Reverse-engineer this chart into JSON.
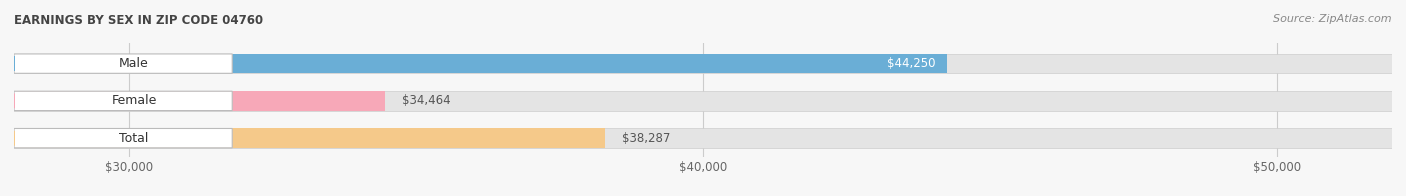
{
  "title": "EARNINGS BY SEX IN ZIP CODE 04760",
  "source": "Source: ZipAtlas.com",
  "categories": [
    "Male",
    "Female",
    "Total"
  ],
  "values": [
    44250,
    34464,
    38287
  ],
  "bar_colors": [
    "#6aaed6",
    "#f7a8b8",
    "#f5c98a"
  ],
  "x_min": 28000,
  "x_max": 52000,
  "xticks": [
    30000,
    40000,
    50000
  ],
  "xtick_labels": [
    "$30,000",
    "$40,000",
    "$50,000"
  ],
  "value_labels": [
    "$44,250",
    "$34,464",
    "$38,287"
  ],
  "value_inside": [
    true,
    false,
    false
  ],
  "background_color": "#f7f7f7",
  "bar_bg_color": "#e4e4e4",
  "title_fontsize": 8.5,
  "source_fontsize": 8,
  "label_fontsize": 9,
  "value_fontsize": 8.5,
  "tick_fontsize": 8.5
}
